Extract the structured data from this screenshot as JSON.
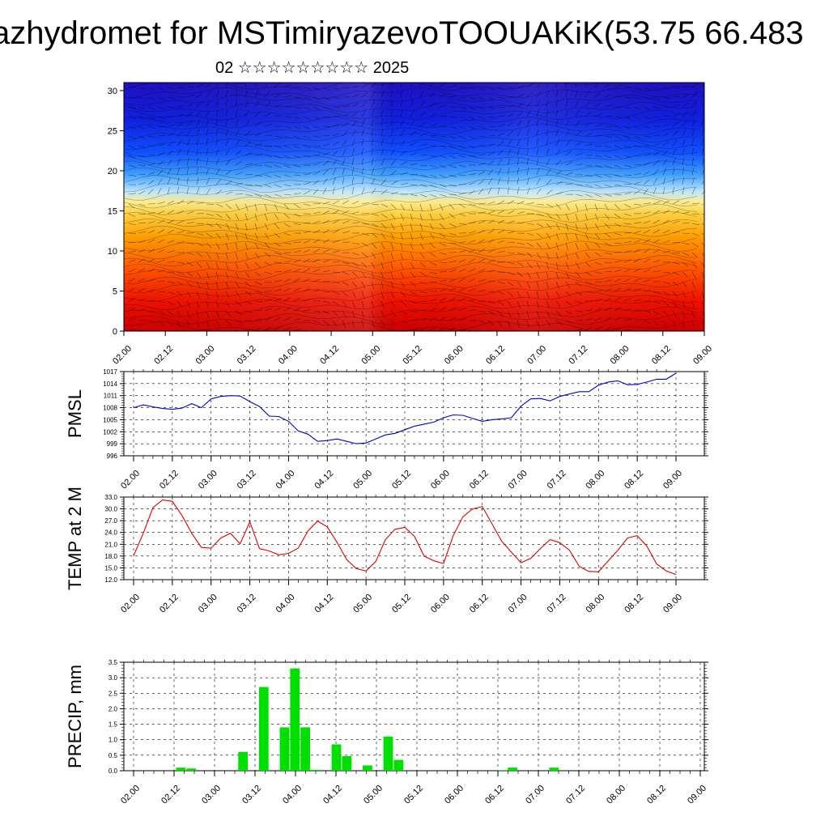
{
  "title": "azhydromet for MSTimiryazevoTOOUAKiK(53.75 66.483",
  "subtitle": "02 ☆☆☆☆☆☆☆☆☆ 2025",
  "colors": {
    "pmsl_line": "#0000cc",
    "temp_line": "#e00000",
    "precip_bar": "#00e000"
  },
  "chart_data": [
    {
      "type": "heatmap",
      "name": "cross-section",
      "ylim": [
        0,
        31
      ],
      "y_ticks": [
        "0",
        "5",
        "10",
        "15",
        "20",
        "25",
        "30"
      ],
      "x_ticks": [
        "02.00",
        "02.12",
        "03.00",
        "03.12",
        "04.00",
        "04.12",
        "05.00",
        "05.12",
        "06.00",
        "06.12",
        "07.00",
        "07.12",
        "08.00",
        "08.12",
        "09.00"
      ]
    },
    {
      "type": "line",
      "name": "pmsl",
      "ylabel": "PMSL",
      "ylim": [
        996,
        1017
      ],
      "y_ticks": [
        "996",
        "999",
        "1002",
        "1005",
        "1008",
        "1011",
        "1014",
        "1017"
      ],
      "x_ticks": [
        "02.00",
        "02.12",
        "03.00",
        "03.12",
        "04.00",
        "04.12",
        "05.00",
        "05.12",
        "06.00",
        "06.12",
        "07.00",
        "07.12",
        "08.00",
        "08.12",
        "09.00"
      ],
      "values": [
        1008,
        1008.7,
        1008.2,
        1007.8,
        1007.6,
        1007.9,
        1009,
        1008,
        1010.2,
        1010.8,
        1011,
        1010.9,
        1009.5,
        1008.3,
        1005.9,
        1005.8,
        1004.6,
        1002.2,
        1001.4,
        999.6,
        999.8,
        1000.2,
        999.6,
        999,
        999.2,
        1000.2,
        1001.2,
        1001.6,
        1002.5,
        1003.4,
        1003.9,
        1004.4,
        1005.5,
        1006.2,
        1006.1,
        1005.3,
        1004.6,
        1005,
        1005.2,
        1005.5,
        1008.4,
        1010.2,
        1010.3,
        1009.7,
        1010.8,
        1011.4,
        1012,
        1012,
        1013.6,
        1014.4,
        1014.7,
        1013.7,
        1013.8,
        1014.4,
        1015.1,
        1015.1,
        1016.6
      ]
    },
    {
      "type": "line",
      "name": "temp",
      "ylabel": "TEMP at 2 M",
      "ylim": [
        12,
        33
      ],
      "y_ticks": [
        "12.0",
        "15.0",
        "18.0",
        "21.0",
        "24.0",
        "27.0",
        "30.0",
        "33.0"
      ],
      "x_ticks": [
        "02.00",
        "02.12",
        "03.00",
        "03.12",
        "04.00",
        "04.12",
        "05.00",
        "05.12",
        "06.00",
        "06.12",
        "07.00",
        "07.12",
        "08.00",
        "08.12",
        "09.00"
      ],
      "values": [
        18.1,
        23.8,
        30.3,
        32.3,
        31.9,
        28.3,
        23.8,
        20.2,
        20,
        22.6,
        23.8,
        21.1,
        26.7,
        19.9,
        19.3,
        18.3,
        18.7,
        20,
        24.4,
        26.9,
        25.4,
        21.5,
        17.1,
        14.8,
        14.2,
        16.6,
        22.2,
        24.8,
        25.3,
        23,
        18,
        16.8,
        16.1,
        23.2,
        28,
        30,
        30.6,
        26.2,
        21.8,
        19,
        16.3,
        17.4,
        19.9,
        22.2,
        21.4,
        19.5,
        15.4,
        14.1,
        14,
        16.8,
        19.5,
        22.6,
        23.2,
        20.5,
        16,
        14.2,
        13.3
      ]
    },
    {
      "type": "bar",
      "name": "precip",
      "ylabel": "PRECIP, mm",
      "ylim": [
        0,
        3.5
      ],
      "y_ticks": [
        "0.0",
        "0.5",
        "1.0",
        "1.5",
        "2.0",
        "2.5",
        "3.0",
        "3.5"
      ],
      "x_ticks": [
        "02.00",
        "02.12",
        "03.00",
        "03.12",
        "04.00",
        "04.12",
        "05.00",
        "05.12",
        "06.00",
        "06.12",
        "07.00",
        "07.12",
        "08.00",
        "08.12",
        "09.00"
      ],
      "values": [
        0,
        0,
        0,
        0,
        0,
        0.1,
        0.07,
        0,
        0,
        0,
        0,
        0.6,
        0,
        2.7,
        0,
        1.4,
        3.3,
        1.4,
        0.03,
        0,
        0.85,
        0.47,
        0,
        0.17,
        0,
        1.1,
        0.35,
        0,
        0,
        0,
        0,
        0,
        0,
        0,
        0,
        0,
        0.02,
        0.1,
        0,
        0,
        0,
        0.1,
        0,
        0,
        0,
        0,
        0,
        0,
        0,
        0,
        0,
        0,
        0,
        0,
        0,
        0
      ]
    }
  ]
}
